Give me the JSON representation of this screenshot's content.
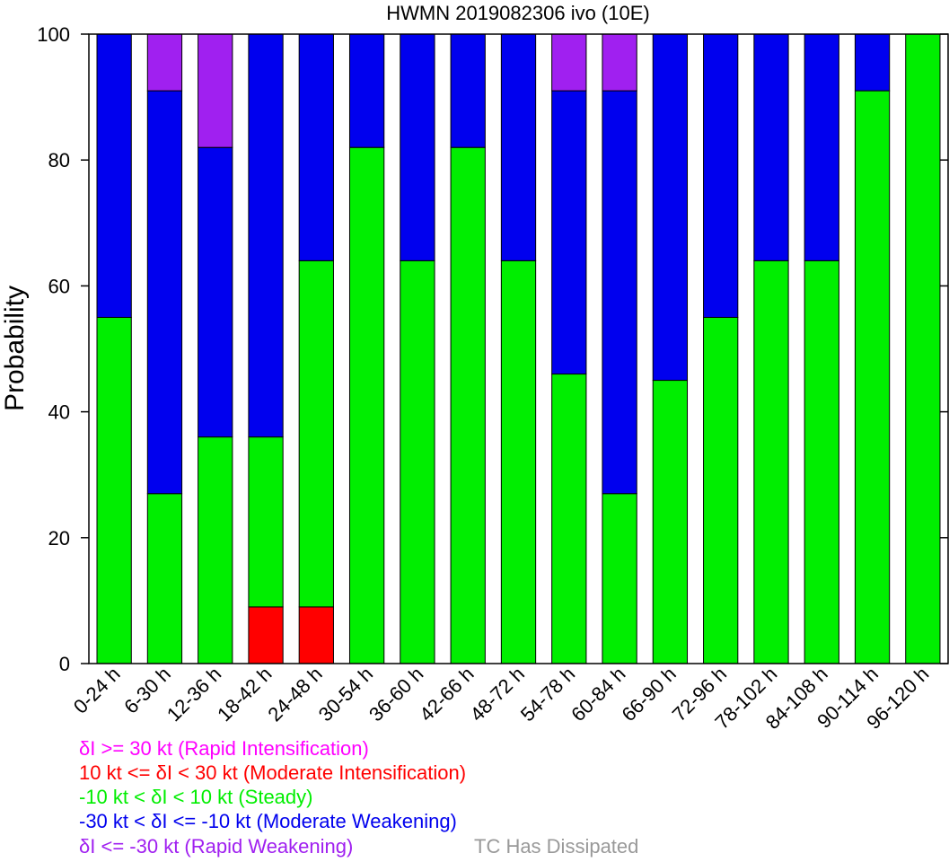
{
  "chart_data": {
    "type": "bar",
    "stacked": true,
    "title": "HWMN 2019082306 ivo (10E)",
    "ylabel": "Probability",
    "ylim": [
      0,
      100
    ],
    "yticks": [
      "0",
      "20",
      "40",
      "60",
      "80",
      "100"
    ],
    "ytick_values": [
      0,
      20,
      40,
      60,
      80,
      100
    ],
    "categories": [
      "0-24 h",
      "6-30 h",
      "12-36 h",
      "18-42 h",
      "24-48 h",
      "30-54 h",
      "36-60 h",
      "42-66 h",
      "48-72 h",
      "54-78 h",
      "60-84 h",
      "66-90 h",
      "72-96 h",
      "78-102 h",
      "84-108 h",
      "90-114 h",
      "96-120 h"
    ],
    "series": [
      {
        "key": "mi",
        "color": "#ff0000",
        "values": [
          0,
          0,
          0,
          9,
          9,
          0,
          0,
          0,
          0,
          0,
          0,
          0,
          0,
          0,
          0,
          0,
          0
        ]
      },
      {
        "key": "st",
        "color": "#00ee00",
        "values": [
          55,
          27,
          36,
          27,
          55,
          82,
          64,
          82,
          64,
          46,
          27,
          45,
          55,
          64,
          64,
          91,
          100
        ]
      },
      {
        "key": "mw",
        "color": "#0000ee",
        "values": [
          45,
          64,
          46,
          64,
          36,
          18,
          36,
          18,
          36,
          45,
          64,
          55,
          45,
          36,
          36,
          9,
          0
        ]
      },
      {
        "key": "rw",
        "color": "#a020f0",
        "values": [
          0,
          9,
          18,
          0,
          0,
          0,
          0,
          0,
          0,
          9,
          9,
          0,
          0,
          0,
          0,
          0,
          0
        ]
      }
    ],
    "grid": false,
    "legend": {
      "placement": "bottom",
      "entries": [
        {
          "text": "δI >= 30 kt (Rapid Intensification)",
          "color": "#ff00ff"
        },
        {
          "text": "10 kt <= δI < 30 kt (Moderate Intensification)",
          "color": "#ff0000"
        },
        {
          "text": "-10 kt < δI < 10 kt (Steady)",
          "color": "#00ee00"
        },
        {
          "text": "-30 kt < δI <= -10 kt (Moderate Weakening)",
          "color": "#0000ee"
        },
        {
          "text": "δI <= -30 kt (Rapid Weakening)",
          "color": "#a020f0"
        }
      ],
      "dissipated": {
        "text": "TC Has Dissipated",
        "color": "#999999"
      }
    }
  }
}
